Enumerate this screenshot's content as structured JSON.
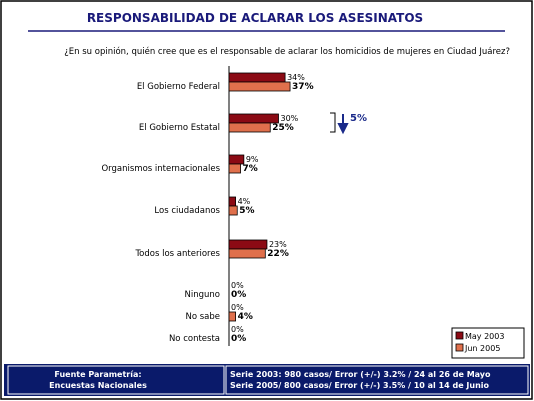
{
  "chart_data": {
    "type": "hbar",
    "title": "RESPONSABILIDAD DE ACLARAR LOS ASESINATOS",
    "subtitle": "¿En su opinión, quién cree que es el responsable de aclarar los homicidios de mujeres en Ciudad Juárez?",
    "categories": [
      "El Gobierno Federal",
      "El Gobierno Estatal",
      "Organismos internacionales",
      "Los ciudadanos",
      "Todos los anteriores",
      "Ninguno",
      "No sabe",
      "No contesta"
    ],
    "series": [
      {
        "name": "May 2003",
        "color": "#8b0a14",
        "values": [
          34,
          30,
          9,
          4,
          23,
          0,
          0,
          0
        ],
        "value_labels": [
          "34%",
          "30%",
          "9%",
          "4%",
          "23%",
          "0%",
          "0%",
          "0%"
        ]
      },
      {
        "name": "Jun 2005",
        "color": "#e0704c",
        "values": [
          37,
          25,
          7,
          5,
          22,
          0,
          4,
          0
        ],
        "value_labels": [
          "37%",
          "25%",
          "7%",
          "5%",
          "22%",
          "0%",
          "4%",
          "0%"
        ]
      }
    ],
    "xlim": [
      0,
      100
    ],
    "annotation": "5%",
    "source": [
      "Fuente Parametría:",
      "Encuestas Nacionales"
    ],
    "notes": [
      "Serie 2003: 980 casos/ Error  (+/-)  3.2% / 24 al 26 de Mayo",
      "Serie 2005/ 800 casos/ Error (+/-)  3.5% / 10 al 14 de Junio"
    ]
  }
}
